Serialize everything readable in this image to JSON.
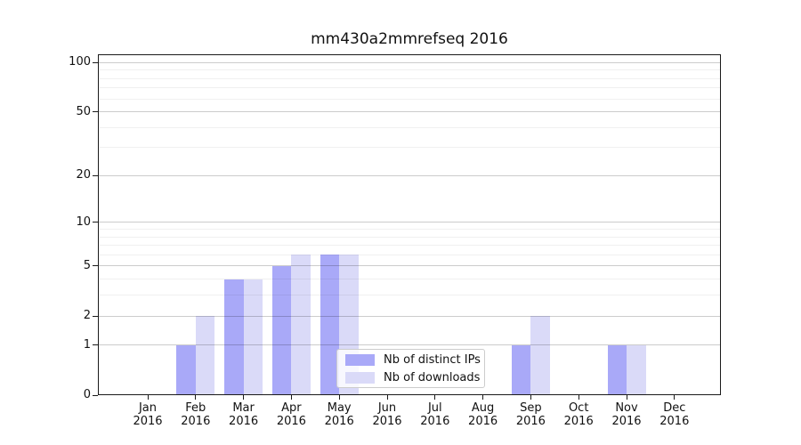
{
  "title": "mm430a2mmrefseq 2016",
  "legend": {
    "items": [
      {
        "label": "Nb of distinct IPs",
        "color": "#a9a9f8"
      },
      {
        "label": "Nb of downloads",
        "color": "#dadaf8"
      }
    ]
  },
  "y_axis": {
    "tick_labels": [
      "100",
      "50",
      "20",
      "10",
      "5",
      "2",
      "1",
      "0"
    ],
    "major_gridline_values": [
      1,
      2,
      5,
      10,
      20,
      50,
      100
    ],
    "minor_gridline_values": [
      3,
      4,
      6,
      7,
      8,
      9,
      30,
      40,
      60,
      70,
      80,
      90
    ]
  },
  "x_axis": {
    "year_label": "2016",
    "month_labels": [
      "Jan",
      "Feb",
      "Mar",
      "Apr",
      "May",
      "Jun",
      "Jul",
      "Aug",
      "Sep",
      "Oct",
      "Nov",
      "Dec"
    ]
  },
  "chart_data": {
    "type": "bar",
    "title": "mm430a2mmrefseq 2016",
    "categories": [
      "Jan 2016",
      "Feb 2016",
      "Mar 2016",
      "Apr 2016",
      "May 2016",
      "Jun 2016",
      "Jul 2016",
      "Aug 2016",
      "Sep 2016",
      "Oct 2016",
      "Nov 2016",
      "Dec 2016"
    ],
    "series": [
      {
        "name": "Nb of distinct IPs",
        "color": "#a9a9f8",
        "values": [
          0,
          1,
          4,
          5,
          6,
          0,
          0,
          0,
          1,
          0,
          1,
          0
        ]
      },
      {
        "name": "Nb of downloads",
        "color": "#dadaf8",
        "values": [
          0,
          2,
          4,
          6,
          6,
          0,
          0,
          0,
          2,
          0,
          1,
          0
        ]
      }
    ],
    "yscale": "log1p",
    "ylim": [
      0,
      112
    ],
    "ytick_values": [
      0,
      1,
      2,
      5,
      10,
      20,
      50,
      100
    ],
    "grid": true,
    "legend_position": "lower center-right inside plot"
  }
}
